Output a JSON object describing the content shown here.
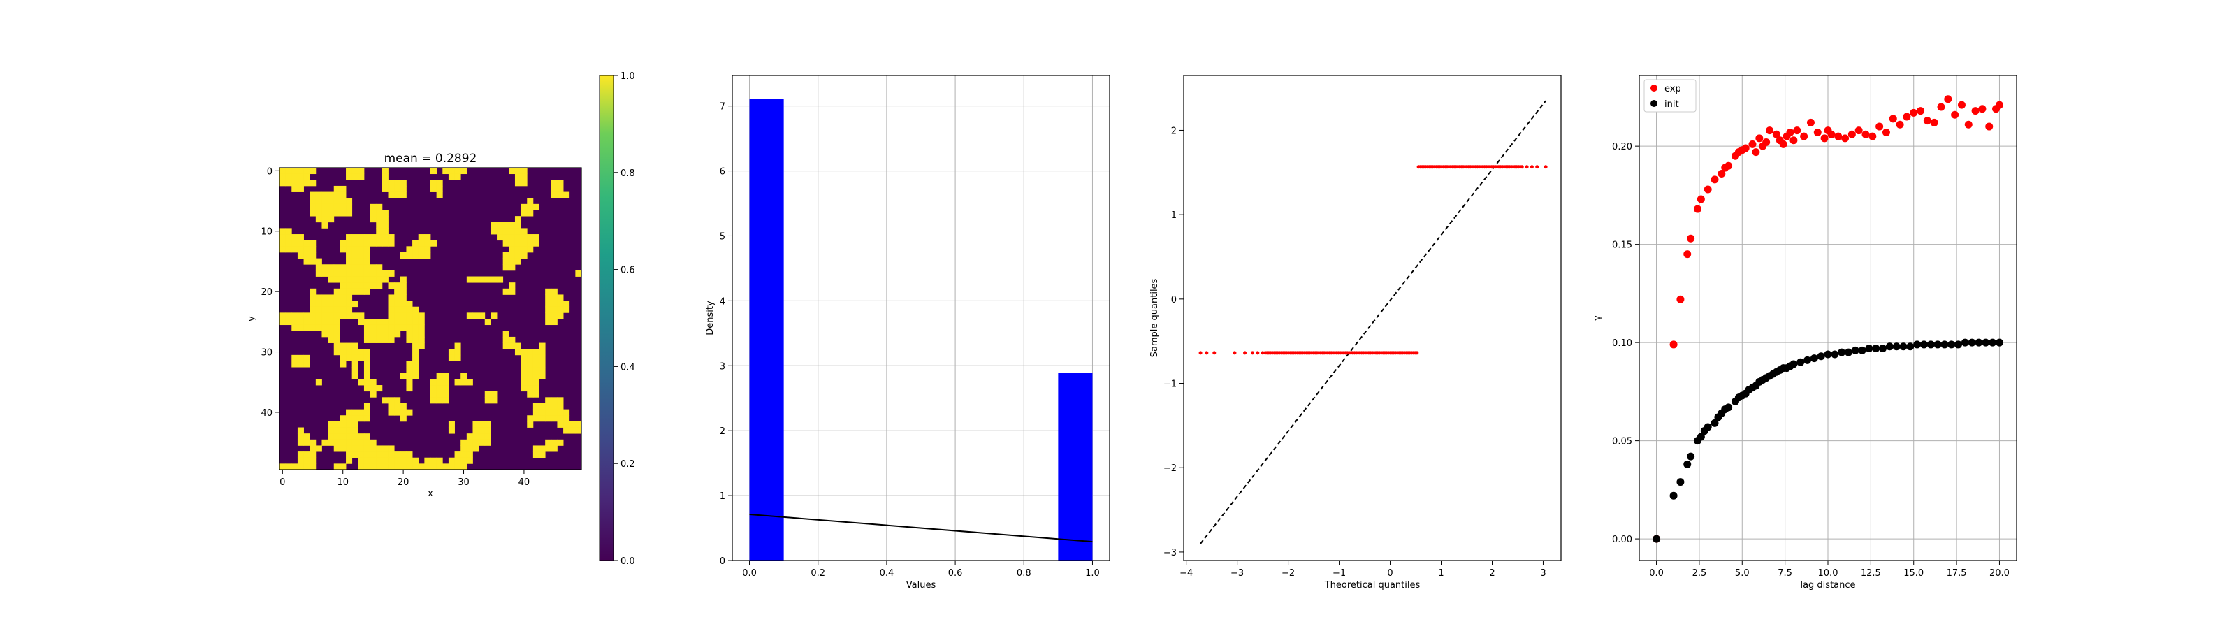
{
  "chart_data": [
    {
      "type": "heatmap",
      "title": "mean = 0.2892",
      "xlabel": "x",
      "ylabel": "y",
      "grid_size": 50,
      "xticks": [
        0,
        10,
        20,
        30,
        40
      ],
      "yticks": [
        0,
        10,
        20,
        30,
        40
      ],
      "colorbar": {
        "min": 0.0,
        "max": 1.0,
        "ticks": [
          "0.0",
          "0.2",
          "0.4",
          "0.6",
          "0.8",
          "1.0"
        ]
      },
      "colormap": "viridis",
      "low_color": "#440154",
      "high_color": "#fde725",
      "mean": 0.2892
    },
    {
      "type": "bar",
      "xlabel": "Values",
      "ylabel": "Density",
      "xlim": [
        -0.05,
        1.05
      ],
      "ylim": [
        0,
        7.47
      ],
      "xticks": [
        "0.0",
        "0.2",
        "0.4",
        "0.6",
        "0.8",
        "1.0"
      ],
      "yticks": [
        "0",
        "1",
        "2",
        "3",
        "4",
        "5",
        "6",
        "7"
      ],
      "bins": [
        {
          "x0": 0.0,
          "x1": 0.1,
          "value": 7.108
        },
        {
          "x0": 0.9,
          "x1": 1.0,
          "value": 2.892
        }
      ],
      "bar_color": "#0000ff",
      "line": {
        "x": [
          0.0,
          1.0
        ],
        "y": [
          0.711,
          0.289
        ],
        "color": "#000000"
      },
      "grid": true
    },
    {
      "type": "scatter",
      "xlabel": "Theoretical quantiles",
      "ylabel": "Sample quantiles",
      "xlim": [
        -4.05,
        3.35
      ],
      "ylim": [
        -3.1,
        2.65
      ],
      "xticks": [
        "−4",
        "−3",
        "−2",
        "−1",
        "0",
        "1",
        "2",
        "3"
      ],
      "yticks": [
        "−3",
        "−2",
        "−1",
        "0",
        "1",
        "2"
      ],
      "clusters": [
        {
          "y": -0.638,
          "x_from": -3.72,
          "x_to": 0.556,
          "color": "#ff0000"
        },
        {
          "y": 1.567,
          "x_from": 0.556,
          "x_to": 3.05,
          "color": "#ff0000"
        }
      ],
      "reference_line": {
        "x": [
          -3.72,
          3.05
        ],
        "y": [
          -2.9,
          2.35
        ],
        "style": "dashed",
        "color": "#000000"
      },
      "grid": false
    },
    {
      "type": "scatter",
      "xlabel": "lag distance",
      "ylabel": "γ",
      "xlim": [
        -1.0,
        21.0
      ],
      "ylim": [
        -0.011,
        0.236
      ],
      "xticks": [
        "0.0",
        "2.5",
        "5.0",
        "7.5",
        "10.0",
        "12.5",
        "15.0",
        "17.5",
        "20.0"
      ],
      "yticks": [
        "0.00",
        "0.05",
        "0.10",
        "0.15",
        "0.20"
      ],
      "legend_position": "top-left",
      "grid": true,
      "series": [
        {
          "name": "exp",
          "color": "#ff0000",
          "x": [
            0.0,
            1.0,
            1.4,
            1.8,
            2.0,
            2.4,
            2.6,
            3.0,
            3.4,
            3.8,
            4.0,
            4.2,
            4.6,
            4.8,
            5.0,
            5.2,
            5.6,
            5.8,
            6.0,
            6.2,
            6.4,
            6.6,
            7.0,
            7.2,
            7.4,
            7.6,
            7.8,
            8.0,
            8.2,
            8.6,
            9.0,
            9.4,
            9.8,
            10.0,
            10.2,
            10.6,
            11.0,
            11.4,
            11.8,
            12.2,
            12.6,
            13.0,
            13.4,
            13.8,
            14.2,
            14.6,
            15.0,
            15.4,
            15.8,
            16.2,
            16.6,
            17.0,
            17.4,
            17.8,
            18.2,
            18.6,
            19.0,
            19.4,
            19.8,
            20.0
          ],
          "y": [
            0.0,
            0.099,
            0.122,
            0.145,
            0.153,
            0.168,
            0.173,
            0.178,
            0.183,
            0.186,
            0.189,
            0.19,
            0.195,
            0.197,
            0.198,
            0.199,
            0.201,
            0.197,
            0.204,
            0.2,
            0.202,
            0.208,
            0.206,
            0.203,
            0.201,
            0.205,
            0.207,
            0.203,
            0.208,
            0.205,
            0.212,
            0.207,
            0.204,
            0.208,
            0.206,
            0.205,
            0.204,
            0.206,
            0.208,
            0.206,
            0.205,
            0.21,
            0.207,
            0.214,
            0.211,
            0.215,
            0.217,
            0.218,
            0.213,
            0.212,
            0.22,
            0.224,
            0.216,
            0.221,
            0.211,
            0.218,
            0.219,
            0.21,
            0.219,
            0.221
          ]
        },
        {
          "name": "init",
          "color": "#000000",
          "x": [
            0.0,
            1.0,
            1.4,
            1.8,
            2.0,
            2.4,
            2.6,
            2.8,
            3.0,
            3.4,
            3.6,
            3.8,
            4.0,
            4.2,
            4.6,
            4.8,
            5.0,
            5.2,
            5.4,
            5.6,
            5.8,
            6.0,
            6.2,
            6.4,
            6.6,
            6.8,
            7.0,
            7.2,
            7.4,
            7.6,
            7.8,
            8.0,
            8.4,
            8.8,
            9.2,
            9.6,
            10.0,
            10.4,
            10.8,
            11.2,
            11.6,
            12.0,
            12.4,
            12.8,
            13.2,
            13.6,
            14.0,
            14.4,
            14.8,
            15.2,
            15.6,
            16.0,
            16.4,
            16.8,
            17.2,
            17.6,
            18.0,
            18.4,
            18.8,
            19.2,
            19.6,
            20.0
          ],
          "y": [
            0.0,
            0.022,
            0.029,
            0.038,
            0.042,
            0.05,
            0.052,
            0.055,
            0.057,
            0.059,
            0.062,
            0.064,
            0.066,
            0.067,
            0.07,
            0.072,
            0.073,
            0.074,
            0.076,
            0.077,
            0.078,
            0.08,
            0.081,
            0.082,
            0.083,
            0.084,
            0.085,
            0.086,
            0.087,
            0.087,
            0.088,
            0.089,
            0.09,
            0.091,
            0.092,
            0.093,
            0.094,
            0.094,
            0.095,
            0.095,
            0.096,
            0.096,
            0.097,
            0.097,
            0.097,
            0.098,
            0.098,
            0.098,
            0.098,
            0.099,
            0.099,
            0.099,
            0.099,
            0.099,
            0.099,
            0.099,
            0.1,
            0.1,
            0.1,
            0.1,
            0.1,
            0.1
          ]
        }
      ]
    }
  ]
}
